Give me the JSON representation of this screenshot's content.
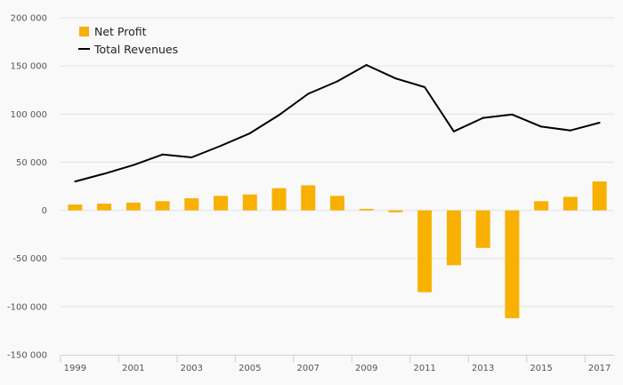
{
  "chart_data": {
    "type": "bar",
    "categories": [
      "1999",
      "2000",
      "2001",
      "2002",
      "2003",
      "2004",
      "2005",
      "2006",
      "2007",
      "2008",
      "2009",
      "2010",
      "2011",
      "2012",
      "2013",
      "2014",
      "2015",
      "2016",
      "2017"
    ],
    "x_tick_labels": [
      "1999",
      "2001",
      "2003",
      "2005",
      "2007",
      "2009",
      "2011",
      "2013",
      "2015",
      "2017"
    ],
    "series": [
      {
        "name": "Net Profit",
        "type": "bar",
        "color": "#F8B100",
        "values": [
          6000,
          7000,
          8000,
          9500,
          12500,
          15000,
          16500,
          23000,
          26000,
          15000,
          1500,
          -2000,
          -85000,
          -57000,
          -39000,
          -112000,
          9500,
          14000,
          30000
        ]
      },
      {
        "name": "Total Revenues",
        "type": "line",
        "color": "#000000",
        "values": [
          30000,
          38000,
          47000,
          58000,
          55000,
          67000,
          80000,
          99000,
          121000,
          134000,
          151000,
          137000,
          128000,
          82000,
          96000,
          99500,
          87000,
          83000,
          91000
        ]
      }
    ],
    "y_tick_labels": [
      "200 000",
      "150 000",
      "100 000",
      "50 000",
      "0",
      "-50 000",
      "-100 000",
      "-150 000"
    ],
    "y_ticks": [
      200000,
      150000,
      100000,
      50000,
      0,
      -50000,
      -100000,
      -150000
    ],
    "ylim": [
      -150000,
      200000
    ],
    "grid": true,
    "legend_position": "top-left",
    "title": "",
    "xlabel": "",
    "ylabel": ""
  }
}
